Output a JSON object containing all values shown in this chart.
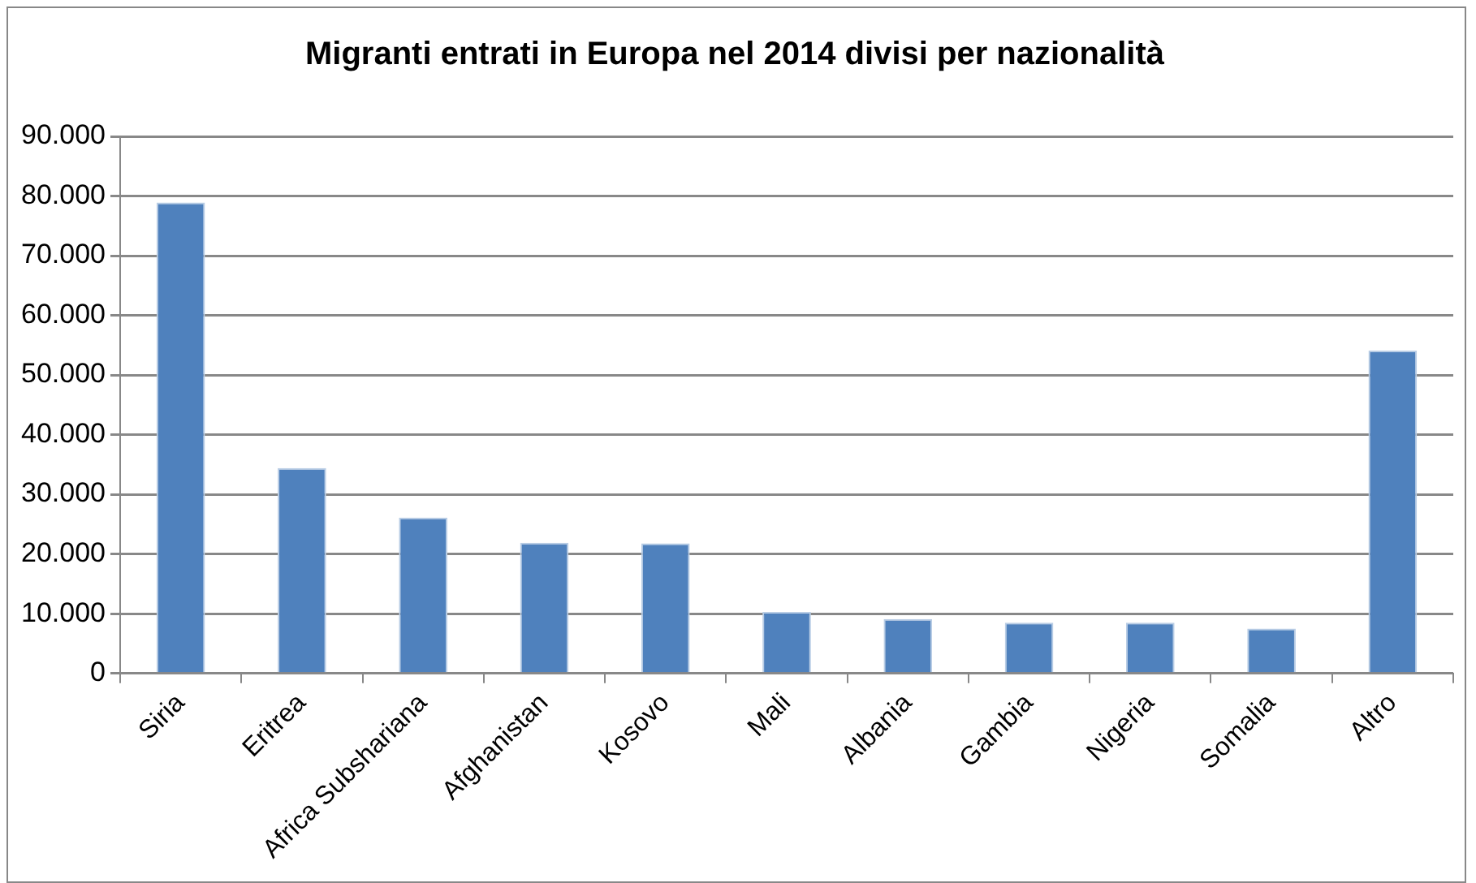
{
  "chart_data": {
    "type": "bar",
    "title": "Migranti entrati in Europa nel 2014 divisi per nazionalità",
    "categories": [
      "Siria",
      "Eritrea",
      "Africa Subshariana",
      "Afghanistan",
      "Kosovo",
      "Mali",
      "Albania",
      "Gambia",
      "Nigeria",
      "Somalia",
      "Altro"
    ],
    "values": [
      78900,
      34400,
      26100,
      21900,
      21800,
      10300,
      9100,
      8500,
      8500,
      7500,
      54100
    ],
    "color": "#4f81bd",
    "ylim": [
      0,
      90000
    ],
    "yticks": [
      {
        "value": 0,
        "label": "0"
      },
      {
        "value": 10000,
        "label": "10.000"
      },
      {
        "value": 20000,
        "label": "20.000"
      },
      {
        "value": 30000,
        "label": "30.000"
      },
      {
        "value": 40000,
        "label": "40.000"
      },
      {
        "value": 50000,
        "label": "50.000"
      },
      {
        "value": 60000,
        "label": "60.000"
      },
      {
        "value": 70000,
        "label": "70.000"
      },
      {
        "value": 80000,
        "label": "80.000"
      },
      {
        "value": 90000,
        "label": "90.000"
      }
    ],
    "grid": "y",
    "legend": false
  }
}
